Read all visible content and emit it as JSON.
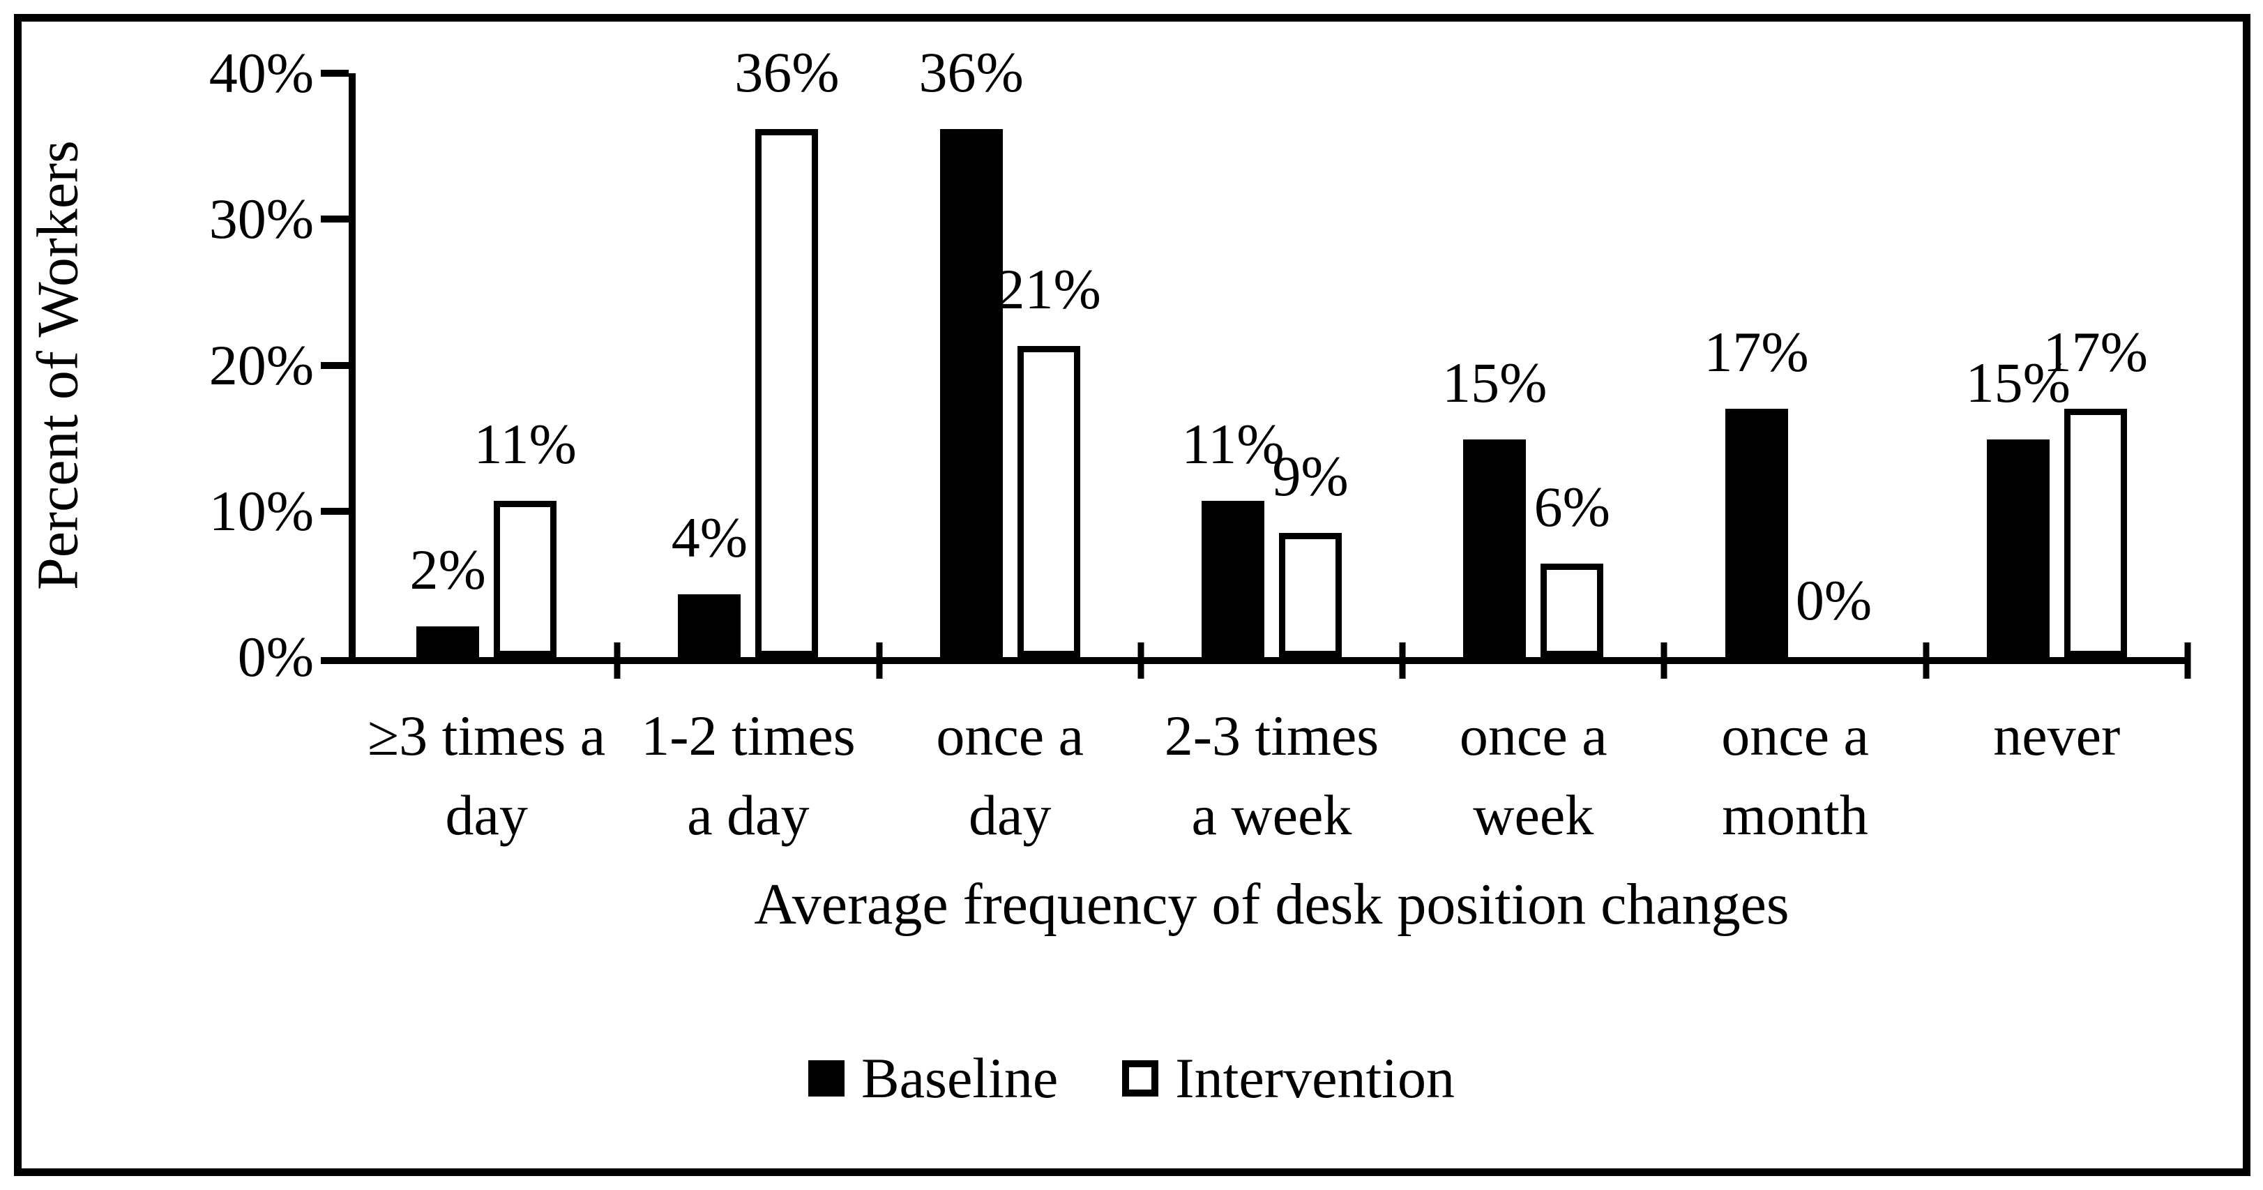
{
  "figure": {
    "background_color": "#ffffff",
    "border_color": "#000000",
    "bar_fill_baseline": "#000000",
    "bar_fill_intervention": "#ffffff",
    "bar_outline": "#000000"
  },
  "y_axis": {
    "title": "Percent of Workers",
    "tick_labels": [
      "0%",
      "10%",
      "20%",
      "30%",
      "40%"
    ],
    "tick_values": [
      0,
      10,
      20,
      30,
      40
    ],
    "max": 40
  },
  "x_axis": {
    "title": "Average frequency of desk position changes"
  },
  "legend": [
    {
      "label": "Baseline",
      "fill": "#000000"
    },
    {
      "label": "Intervention",
      "fill": "#ffffff"
    }
  ],
  "chart_data": {
    "type": "bar",
    "title": "",
    "categories": [
      "≥3 times a day",
      "1-2 times a day",
      "once a day",
      "2-3 times a week",
      "once a week",
      "once a month",
      "never"
    ],
    "category_lines": [
      [
        "≥3 times a",
        "day"
      ],
      [
        "1-2 times",
        "a day"
      ],
      [
        "once a",
        "day"
      ],
      [
        "2-3 times",
        "a week"
      ],
      [
        "once a",
        "week"
      ],
      [
        "once a",
        "month"
      ],
      [
        "never",
        ""
      ]
    ],
    "series": [
      {
        "name": "Baseline",
        "fill": "#000000",
        "values": [
          2.1,
          4.3,
          36.2,
          10.7,
          14.9,
          17.0,
          14.9
        ],
        "labels": [
          "2%",
          "4%",
          "36%",
          "11%",
          "15%",
          "17%",
          "15%"
        ]
      },
      {
        "name": "Intervention",
        "fill": "#ffffff",
        "values": [
          10.7,
          36.2,
          21.3,
          8.5,
          6.4,
          0.0,
          17.0
        ],
        "labels": [
          "11%",
          "36%",
          "21%",
          "9%",
          "6%",
          "0%",
          "17%"
        ]
      }
    ],
    "xlabel": "Average frequency of desk position changes",
    "ylabel": "Percent of Workers",
    "ylim": [
      0,
      40
    ],
    "grid": "off",
    "legend_position": "bottom-center"
  }
}
